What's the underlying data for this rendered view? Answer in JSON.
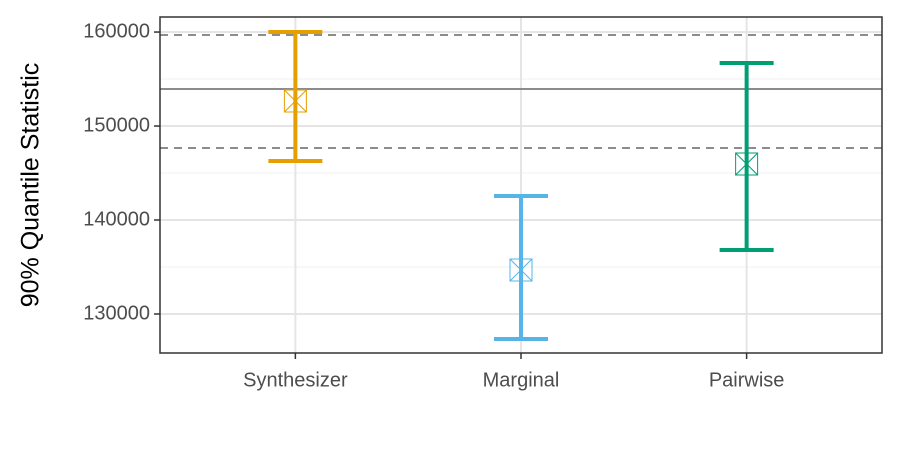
{
  "chart_data": {
    "type": "errorbar",
    "y_label": "90% Quantile Statistic",
    "categories": [
      "Synthesizer",
      "Marginal",
      "Pairwise"
    ],
    "values": [
      152660,
      134680,
      145960
    ],
    "lower": [
      146280,
      127340,
      136810
    ],
    "upper": [
      160000,
      142550,
      156700
    ],
    "colors": [
      "#E69F00",
      "#56B4E9",
      "#009E73"
    ],
    "ylim": [
      125850,
      161600
    ],
    "yticks": [
      130000,
      140000,
      150000,
      160000
    ],
    "minor_yticks": [
      135000,
      145000,
      155000
    ],
    "grid": true,
    "hlines": [
      {
        "value": 153940,
        "style": "solid"
      },
      {
        "value": 159680,
        "style": "dashed"
      },
      {
        "value": 147660,
        "style": "dashed"
      }
    ]
  }
}
